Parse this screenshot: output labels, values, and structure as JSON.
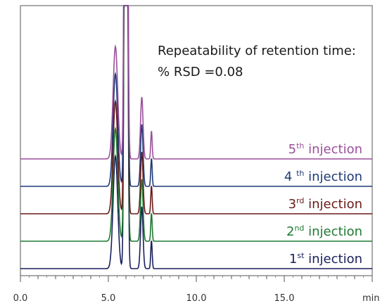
{
  "chart_data": {
    "type": "line",
    "xlabel": "min",
    "xlim": [
      0,
      20
    ],
    "x_ticks": [
      "0.0",
      "5.0",
      "10.0",
      "15.0"
    ],
    "annotation": {
      "line1": "Repeatability of retention time:",
      "line2": "% RSD =0.08"
    },
    "peaks": [
      {
        "rt": 5.4,
        "height": 0.1,
        "width": 0.13
      },
      {
        "rt": 6.0,
        "height": 1.0,
        "width": 0.07
      },
      {
        "rt": 6.9,
        "height": 0.055,
        "width": 0.07
      },
      {
        "rt": 7.45,
        "height": 0.025,
        "width": 0.04
      }
    ],
    "series": [
      {
        "name": "1st injection",
        "label_main": "1",
        "label_sup": "st",
        "label_rest": " injection",
        "color": "#1a1f5c"
      },
      {
        "name": "2nd injection",
        "label_main": "2",
        "label_sup": "nd",
        "label_rest": " injection",
        "color": "#1e7a32"
      },
      {
        "name": "3rd injection",
        "label_main": "3",
        "label_sup": "rd",
        "label_rest": " injection",
        "color": "#6b1a1a"
      },
      {
        "name": "4th injection",
        "label_main": "4 ",
        "label_sup": "th",
        "label_rest": " injection",
        "color": "#1f3a78"
      },
      {
        "name": "5th injection",
        "label_main": "5",
        "label_sup": "th",
        "label_rest": " injection",
        "color": "#9b4f9c"
      }
    ]
  }
}
